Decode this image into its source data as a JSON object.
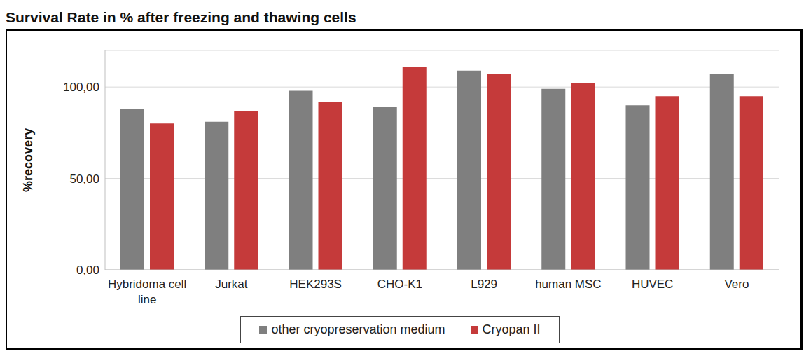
{
  "chart_data": {
    "type": "bar",
    "title": "Survival Rate in % after freezing and thawing cells",
    "y_label": "%recovery",
    "categories": [
      "Hybridoma cell line",
      "Jurkat",
      "HEK293S",
      "CHO-K1",
      "L929",
      "human MSC",
      "HUVEC",
      "Vero"
    ],
    "series": [
      {
        "name": "other cryopreservation medium",
        "color": "#7f7f7f",
        "values": [
          88,
          81,
          98,
          89,
          109,
          99,
          90,
          107
        ]
      },
      {
        "name": "Cryopan II",
        "color": "#c53a3a",
        "values": [
          80,
          87,
          92,
          111,
          107,
          102,
          95,
          95
        ]
      }
    ],
    "ylim": [
      0,
      120
    ],
    "yticks": [
      {
        "value": 0,
        "label": "0,00"
      },
      {
        "value": 50,
        "label": "50,00"
      },
      {
        "value": 100,
        "label": "100,00"
      }
    ],
    "grid": true,
    "legend": "bottom"
  }
}
